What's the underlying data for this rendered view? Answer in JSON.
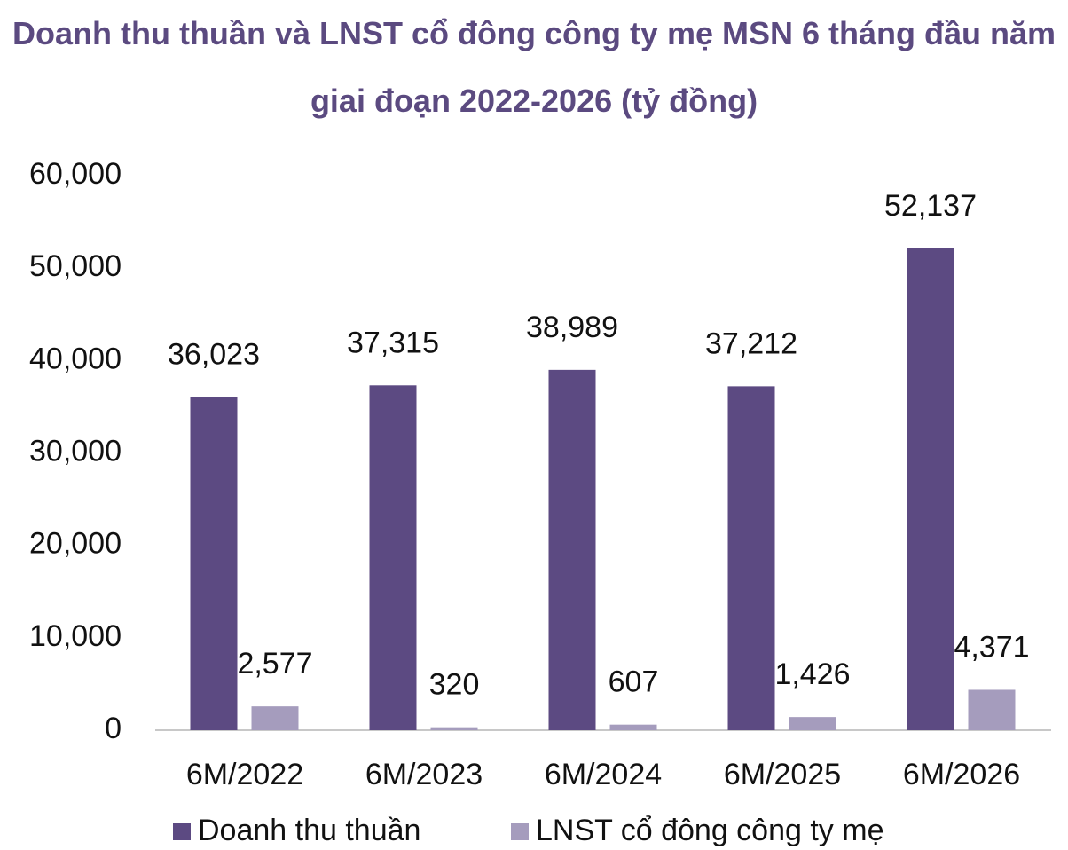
{
  "chart_data": {
    "type": "bar",
    "title": "Doanh thu thuần và LNST cổ đông công ty mẹ MSN 6 tháng đầu năm giai đoạn 2022-2026 (tỷ đồng)",
    "categories": [
      "6M/2022",
      "6M/2023",
      "6M/2024",
      "6M/2025",
      "6M/2026"
    ],
    "series": [
      {
        "name": "Doanh thu thuần",
        "color": "#5c4a82",
        "values": [
          36023,
          37315,
          38989,
          37212,
          52137
        ],
        "value_labels": [
          "36,023",
          "37,315",
          "38,989",
          "37,212",
          "52,137"
        ]
      },
      {
        "name": "LNST cổ đông công ty mẹ",
        "color": "#a59cbd",
        "values": [
          2577,
          320,
          607,
          1426,
          4371
        ],
        "value_labels": [
          "2,577",
          "320",
          "607",
          "1,426",
          "4,371"
        ]
      }
    ],
    "ylim": [
      0,
      60000
    ],
    "yticks": [
      0,
      {
        "value": 10000,
        "label": "10,000"
      },
      {
        "value": 20000,
        "label": "20,000"
      },
      {
        "value": 30000,
        "label": "30,000"
      },
      {
        "value": 40000,
        "label": "40,000"
      },
      {
        "value": 50000,
        "label": "50,000"
      },
      {
        "value": 60000,
        "label": "60,000"
      }
    ],
    "grid": false,
    "legend": "bottom"
  }
}
